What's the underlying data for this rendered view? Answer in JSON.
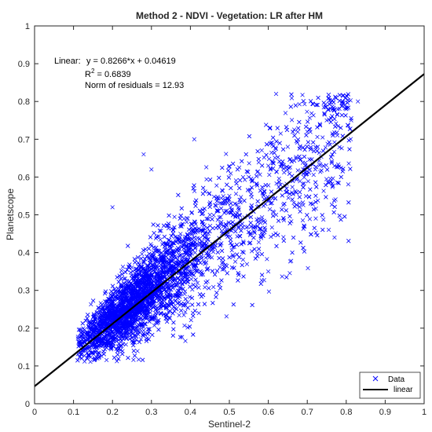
{
  "chart_data": {
    "type": "scatter",
    "title": "Method 2 - NDVI - Vegetation: LR after HM",
    "xlabel": "Sentinel-2",
    "ylabel": "Planetscope",
    "xlim": [
      0,
      1
    ],
    "ylim": [
      0,
      1
    ],
    "xticks": [
      0,
      0.1,
      0.2,
      0.3,
      0.4,
      0.5,
      0.6,
      0.7,
      0.8,
      0.9,
      1
    ],
    "yticks": [
      0,
      0.1,
      0.2,
      0.3,
      0.4,
      0.5,
      0.6,
      0.7,
      0.8,
      0.9,
      1
    ],
    "xtick_labels": [
      "0",
      "0.1",
      "0.2",
      "0.3",
      "0.4",
      "0.5",
      "0.6",
      "0.7",
      "0.8",
      "0.9",
      "1"
    ],
    "ytick_labels": [
      "0",
      "0.1",
      "0.2",
      "0.3",
      "0.4",
      "0.5",
      "0.6",
      "0.7",
      "0.8",
      "0.9",
      "1"
    ],
    "grid": false,
    "series": [
      {
        "name": "Data",
        "marker": "x",
        "color": "#0000ff",
        "x_range": [
          0.11,
          0.85
        ],
        "y_range": [
          0.11,
          0.82
        ],
        "sample_points": [
          [
            0.12,
            0.13
          ],
          [
            0.15,
            0.16
          ],
          [
            0.18,
            0.2
          ],
          [
            0.2,
            0.22
          ],
          [
            0.22,
            0.26
          ],
          [
            0.25,
            0.28
          ],
          [
            0.28,
            0.3
          ],
          [
            0.3,
            0.33
          ],
          [
            0.33,
            0.36
          ],
          [
            0.35,
            0.4
          ],
          [
            0.38,
            0.43
          ],
          [
            0.4,
            0.45
          ],
          [
            0.43,
            0.48
          ],
          [
            0.45,
            0.5
          ],
          [
            0.48,
            0.53
          ],
          [
            0.5,
            0.55
          ],
          [
            0.55,
            0.6
          ],
          [
            0.6,
            0.63
          ],
          [
            0.65,
            0.68
          ],
          [
            0.7,
            0.72
          ],
          [
            0.75,
            0.75
          ],
          [
            0.8,
            0.78
          ],
          [
            0.83,
            0.8
          ],
          [
            0.62,
            0.82
          ],
          [
            0.2,
            0.52
          ],
          [
            0.3,
            0.62
          ],
          [
            0.28,
            0.66
          ],
          [
            0.41,
            0.7
          ],
          [
            0.77,
            0.44
          ],
          [
            0.6,
            0.35
          ]
        ]
      },
      {
        "name": "linear",
        "type": "line",
        "color": "#000000",
        "slope": 0.8266,
        "intercept": 0.04619,
        "x": [
          0,
          1
        ],
        "y": [
          0.04619,
          0.87279
        ]
      }
    ],
    "legend": {
      "position": "bottom-right",
      "entries": [
        "Data",
        "linear"
      ]
    },
    "annotations": {
      "fit_label": "Linear:",
      "equation": "y = 0.8266*x + 0.04619",
      "r2_prefix": "R",
      "r2_sup": "2",
      "r2_value": " = 0.6839",
      "residuals": "Norm of residuals = 12.93"
    }
  }
}
